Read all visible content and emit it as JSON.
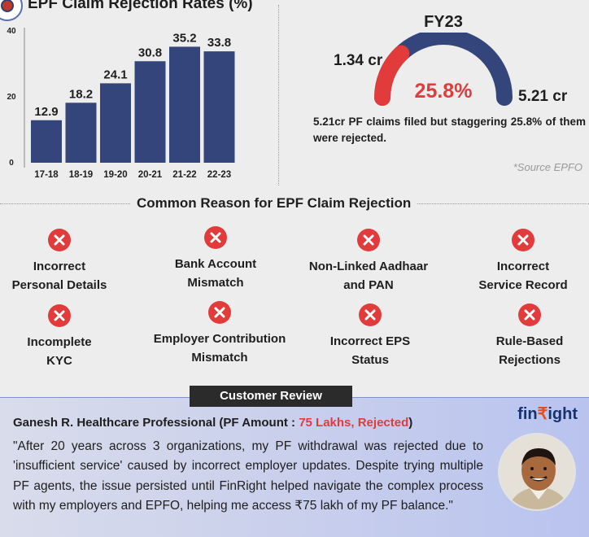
{
  "header": {
    "title": "EPF Claim Rejection Rates  (%)"
  },
  "chart_data": {
    "type": "bar",
    "title": "EPF Claim Rejection Rates  (%)",
    "categories": [
      "17-18",
      "18-19",
      "19-20",
      "20-21",
      "21-22",
      "22-23"
    ],
    "values": [
      12.9,
      18.2,
      24.1,
      30.8,
      35.2,
      33.8
    ],
    "value_labels": [
      "12.9",
      "18.2",
      "24.1",
      "30.8",
      "35.2",
      "33.8"
    ],
    "y_ticks": [
      "0",
      "20",
      "40"
    ],
    "ylim": [
      0,
      40
    ],
    "grid": false,
    "bar_color": "#33457a"
  },
  "gauge": {
    "title": "FY23",
    "rejected_label": "1.34 cr",
    "total_label": "5.21 cr",
    "percent_label": "25.8%",
    "percent_value": 25.8,
    "note": "5.21cr PF claims filed but staggering 25.8% of them were rejected.",
    "source": "*Source EPFO",
    "colors": {
      "rejected": "#e23b3b",
      "total": "#33457a"
    }
  },
  "reasons": {
    "title": "Common Reason for EPF Claim Rejection",
    "icon": "x-circle-icon",
    "icon_color": "#e23b3b",
    "items": [
      {
        "label": "Incorrect\nPersonal Details"
      },
      {
        "label": "Bank Account\nMismatch"
      },
      {
        "label": "Non-Linked Aadhaar\nand PAN"
      },
      {
        "label": "Incorrect\nService Record"
      },
      {
        "label": "Incomplete\nKYC"
      },
      {
        "label": "Employer Contribution\nMismatch"
      },
      {
        "label": "Incorrect EPS\nStatus"
      },
      {
        "label": "Rule-Based\nRejections"
      }
    ]
  },
  "review": {
    "tab_label": "Customer Review",
    "brand_prefix": "fin",
    "brand_symbol": "₹",
    "brand_suffix": "ight",
    "reviewer_name": "Ganesh R. Healthcare Professional (PF Amount : ",
    "amount_label": "75 Lakhs, Rejected",
    "reviewer_close": ")",
    "quote": "\"After 20 years across 3 organizations, my PF withdrawal was rejected due to 'insufficient service' caused by incorrect employer updates. Despite trying multiple PF agents, the issue persisted until FinRight helped navigate the complex process with my employers and EPFO, helping me access ₹75 lakh of my PF balance.\""
  }
}
